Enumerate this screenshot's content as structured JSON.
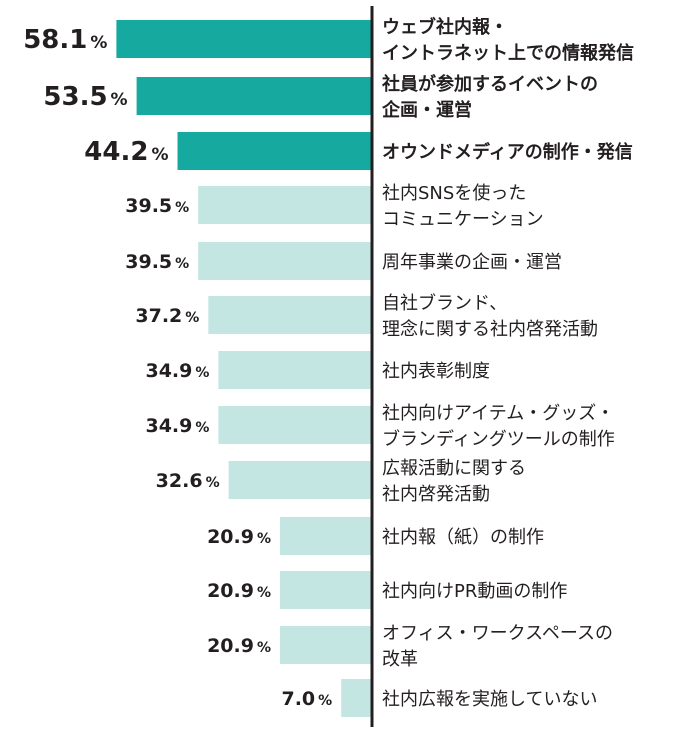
{
  "chart_data": {
    "type": "bar",
    "orientation": "horizontal",
    "unit": "%",
    "highlight_count": 3,
    "colors": {
      "highlight": "#16a9a0",
      "normal": "#c3e6e3",
      "axis": "#231f20",
      "text": "#231f20"
    },
    "categories": [
      "ウェブ社内報・\nイントラネット上での情報発信",
      "社員が参加するイベントの\n企画・運営",
      "オウンドメディアの制作・発信",
      "社内SNSを使った\nコミュニケーション",
      "周年事業の企画・運営",
      "自社ブランド、\n理念に関する社内啓発活動",
      "社内表彰制度",
      "社内向けアイテム・グッズ・\nブランディングツールの制作",
      "広報活動に関する\n社内啓発活動",
      "社内報（紙）の制作",
      "社内向けPR動画の制作",
      "オフィス・ワークスペースの\n改革",
      "社内広報を実施していない"
    ],
    "values": [
      58.1,
      53.5,
      44.2,
      39.5,
      39.5,
      37.2,
      34.9,
      34.9,
      32.6,
      20.9,
      20.9,
      20.9,
      7.0
    ],
    "value_labels": [
      "58.1",
      "53.5",
      "44.2",
      "39.5",
      "39.5",
      "37.2",
      "34.9",
      "34.9",
      "32.6",
      "20.9",
      "20.9",
      "20.9",
      "7.0"
    ],
    "xlim": [
      0,
      100
    ]
  }
}
